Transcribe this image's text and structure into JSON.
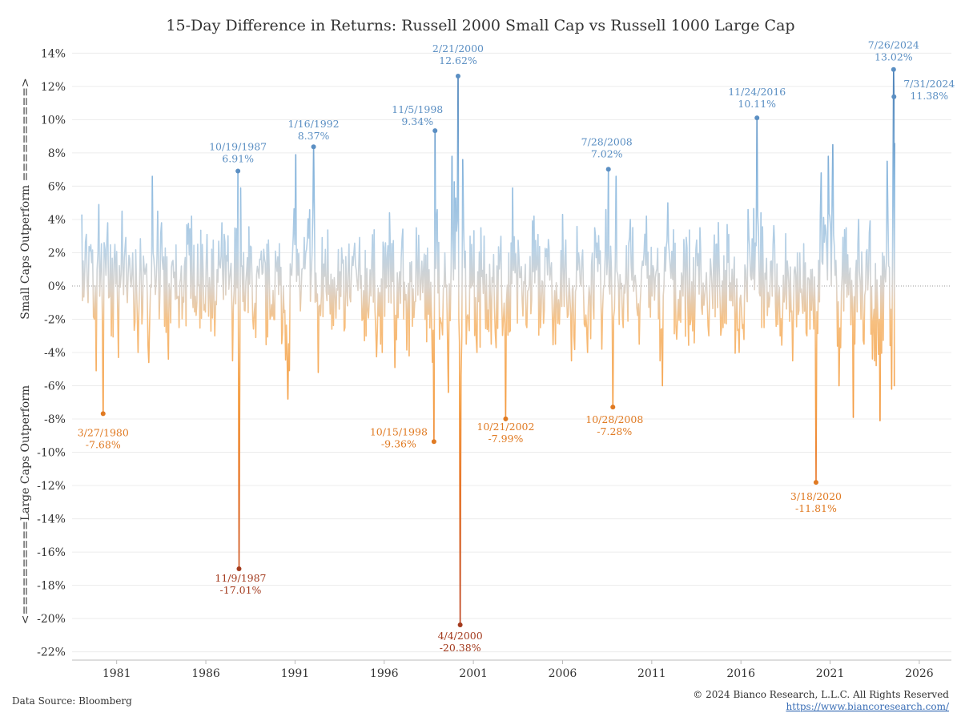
{
  "chart_data": {
    "type": "line",
    "title": "15-Day Difference in Returns: Russell 2000 Small Cap vs Russell 1000 Large Cap",
    "ylabel_top": "Small Caps Outperform ==========>",
    "ylabel_bottom": "<==========Large Caps Outperform",
    "ylim": [
      -22.5,
      14.5
    ],
    "xlim": [
      1978.5,
      2027.8
    ],
    "y_ticks": [
      -22,
      -20,
      -18,
      -16,
      -14,
      -12,
      -10,
      -8,
      -6,
      -4,
      -2,
      0,
      2,
      4,
      6,
      8,
      10,
      12,
      14
    ],
    "y_tick_labels": [
      "-22%",
      "-20%",
      "-18%",
      "-16%",
      "-14%",
      "-12%",
      "-10%",
      "-8%",
      "-6%",
      "-4%",
      "-2%",
      "0%",
      "2%",
      "4%",
      "6%",
      "8%",
      "10%",
      "12%",
      "14%"
    ],
    "x_ticks": [
      1981,
      1986,
      1991,
      1996,
      2001,
      2006,
      2011,
      2016,
      2021,
      2026
    ],
    "x_tick_labels": [
      "1981",
      "1986",
      "1991",
      "1996",
      "2001",
      "2006",
      "2011",
      "2016",
      "2021",
      "2026"
    ],
    "grid": true,
    "colors": {
      "positive_high": "#3d75b0",
      "positive_low": "#9dc5e3",
      "neutral": "#d9cfc4",
      "negative_low": "#f7b266",
      "negative_high": "#ef8a2e",
      "extreme_negative": "#b5381c"
    },
    "series": [
      {
        "points": [
          [
            1979.05,
            4.3
          ],
          [
            1979.12,
            1.5
          ],
          [
            1979.2,
            0.5
          ],
          [
            1979.3,
            3.1
          ],
          [
            1979.4,
            -1.0
          ],
          [
            1979.5,
            2.1
          ],
          [
            1979.6,
            1.4
          ],
          [
            1979.75,
            -2.0
          ],
          [
            1979.85,
            -5.1
          ],
          [
            1980.0,
            4.9
          ],
          [
            1980.1,
            1.0
          ],
          [
            1980.24,
            -7.68
          ],
          [
            1980.35,
            2.2
          ],
          [
            1980.5,
            3.8
          ],
          [
            1980.7,
            -3.0
          ],
          [
            1980.9,
            2.5
          ],
          [
            1981.1,
            -4.3
          ],
          [
            1981.3,
            4.5
          ],
          [
            1981.6,
            -1.0
          ],
          [
            1981.9,
            2.0
          ],
          [
            1982.2,
            -4.0
          ],
          [
            1982.5,
            1.8
          ],
          [
            1982.8,
            -4.6
          ],
          [
            1983.0,
            6.6
          ],
          [
            1983.3,
            4.5
          ],
          [
            1983.6,
            1.0
          ],
          [
            1983.9,
            -4.4
          ],
          [
            1984.2,
            0.5
          ],
          [
            1984.5,
            -2.5
          ],
          [
            1984.8,
            1.2
          ],
          [
            1985.2,
            4.2
          ],
          [
            1985.5,
            -1.0
          ],
          [
            1985.8,
            2.5
          ],
          [
            1986.2,
            0.5
          ],
          [
            1986.5,
            -3.0
          ],
          [
            1986.9,
            3.8
          ],
          [
            1987.2,
            1.5
          ],
          [
            1987.5,
            -4.5
          ],
          [
            1987.8,
            6.91
          ],
          [
            1987.86,
            -17.01
          ],
          [
            1987.95,
            5.9
          ],
          [
            1988.2,
            -1.5
          ],
          [
            1988.5,
            2.4
          ],
          [
            1988.8,
            -3.1
          ],
          [
            1989.2,
            0.8
          ],
          [
            1989.6,
            -2.0
          ],
          [
            1989.9,
            2.1
          ],
          [
            1990.3,
            -2.8
          ],
          [
            1990.6,
            -6.8
          ],
          [
            1990.9,
            3.0
          ],
          [
            1991.04,
            7.9
          ],
          [
            1991.3,
            -1.5
          ],
          [
            1991.6,
            2.0
          ],
          [
            1992.04,
            8.37
          ],
          [
            1992.3,
            -5.2
          ],
          [
            1992.7,
            2.2
          ],
          [
            1993.2,
            0.5
          ],
          [
            1993.8,
            -2.5
          ],
          [
            1994.3,
            2.0
          ],
          [
            1994.8,
            -2.0
          ],
          [
            1995.3,
            1.5
          ],
          [
            1995.8,
            -3.5
          ],
          [
            1996.3,
            4.4
          ],
          [
            1996.6,
            -4.9
          ],
          [
            1997.0,
            2.8
          ],
          [
            1997.4,
            -4.2
          ],
          [
            1997.8,
            3.5
          ],
          [
            1998.2,
            1.0
          ],
          [
            1998.79,
            -9.36
          ],
          [
            1998.85,
            9.34
          ],
          [
            1999.1,
            -3.2
          ],
          [
            1999.4,
            2.0
          ],
          [
            1999.6,
            -6.4
          ],
          [
            1999.8,
            7.8
          ],
          [
            2000.14,
            12.62
          ],
          [
            2000.26,
            -20.38
          ],
          [
            2000.4,
            7.6
          ],
          [
            2000.6,
            -3.5
          ],
          [
            2000.9,
            2.5
          ],
          [
            2001.2,
            -4.0
          ],
          [
            2001.6,
            3.0
          ],
          [
            2002.0,
            -3.5
          ],
          [
            2002.5,
            1.8
          ],
          [
            2002.81,
            -7.99
          ],
          [
            2003.2,
            5.9
          ],
          [
            2003.6,
            0.5
          ],
          [
            2004.0,
            -2.5
          ],
          [
            2004.4,
            4.2
          ],
          [
            2004.8,
            -1.5
          ],
          [
            2005.2,
            2.8
          ],
          [
            2005.6,
            -3.5
          ],
          [
            2006.0,
            4.3
          ],
          [
            2006.5,
            -4.5
          ],
          [
            2006.9,
            2.0
          ],
          [
            2007.4,
            -4.0
          ],
          [
            2007.8,
            3.5
          ],
          [
            2008.2,
            -3.8
          ],
          [
            2008.57,
            7.02
          ],
          [
            2008.82,
            -7.28
          ],
          [
            2009.0,
            6.6
          ],
          [
            2009.4,
            -2.5
          ],
          [
            2009.8,
            4.0
          ],
          [
            2010.3,
            -3.5
          ],
          [
            2010.7,
            4.2
          ],
          [
            2011.2,
            0.5
          ],
          [
            2011.6,
            -6.0
          ],
          [
            2011.9,
            5.0
          ],
          [
            2012.4,
            -3.2
          ],
          [
            2012.8,
            2.8
          ],
          [
            2013.2,
            -2.0
          ],
          [
            2013.7,
            3.5
          ],
          [
            2014.2,
            -3.0
          ],
          [
            2014.6,
            2.5
          ],
          [
            2015.0,
            -2.5
          ],
          [
            2015.5,
            1.0
          ],
          [
            2015.9,
            -4.0
          ],
          [
            2016.4,
            4.6
          ],
          [
            2016.9,
            10.11
          ],
          [
            2017.3,
            -2.5
          ],
          [
            2017.8,
            2.5
          ],
          [
            2018.2,
            -3.0
          ],
          [
            2018.6,
            1.5
          ],
          [
            2018.9,
            -4.5
          ],
          [
            2019.3,
            2.0
          ],
          [
            2019.7,
            -3.0
          ],
          [
            2020.0,
            1.0
          ],
          [
            2020.21,
            -11.81
          ],
          [
            2020.5,
            6.8
          ],
          [
            2020.9,
            7.8
          ],
          [
            2021.15,
            8.5
          ],
          [
            2021.5,
            -6.0
          ],
          [
            2021.9,
            3.5
          ],
          [
            2022.3,
            -7.9
          ],
          [
            2022.6,
            4.0
          ],
          [
            2022.9,
            -3.5
          ],
          [
            2023.2,
            3.2
          ],
          [
            2023.5,
            -4.5
          ],
          [
            2023.8,
            -8.1
          ],
          [
            2024.2,
            7.5
          ],
          [
            2024.45,
            -6.2
          ],
          [
            2024.56,
            13.02
          ],
          [
            2024.58,
            11.38
          ],
          [
            2024.6,
            -6.0
          ],
          [
            2024.62,
            8.6
          ]
        ]
      }
    ],
    "annotations": [
      {
        "date": "3/27/1980",
        "value_label": "-7.68%",
        "x": 1980.24,
        "y": -7.68,
        "color": "#e07a22"
      },
      {
        "date": "10/19/1987",
        "value_label": "6.91%",
        "x": 1987.8,
        "y": 6.91,
        "color": "#5b8fc3"
      },
      {
        "date": "11/9/1987",
        "value_label": "-17.01%",
        "x": 1987.86,
        "y": -17.01,
        "color": "#a33a1d"
      },
      {
        "date": "1/16/1992",
        "value_label": "8.37%",
        "x": 1992.04,
        "y": 8.37,
        "color": "#5b8fc3"
      },
      {
        "date": "11/5/1998",
        "value_label": "9.34%",
        "x": 1998.85,
        "y": 9.34,
        "color": "#5b8fc3"
      },
      {
        "date": "10/15/1998",
        "value_label": "-9.36%",
        "x": 1998.79,
        "y": -9.36,
        "color": "#e07a22"
      },
      {
        "date": "2/21/2000",
        "value_label": "12.62%",
        "x": 2000.14,
        "y": 12.62,
        "color": "#5b8fc3"
      },
      {
        "date": "4/4/2000",
        "value_label": "-20.38%",
        "x": 2000.26,
        "y": -20.38,
        "color": "#a33a1d"
      },
      {
        "date": "10/21/2002",
        "value_label": "-7.99%",
        "x": 2002.81,
        "y": -7.99,
        "color": "#e07a22"
      },
      {
        "date": "7/28/2008",
        "value_label": "7.02%",
        "x": 2008.57,
        "y": 7.02,
        "color": "#5b8fc3"
      },
      {
        "date": "10/28/2008",
        "value_label": "-7.28%",
        "x": 2008.82,
        "y": -7.28,
        "color": "#e07a22"
      },
      {
        "date": "11/24/2016",
        "value_label": "10.11%",
        "x": 2016.9,
        "y": 10.11,
        "color": "#5b8fc3"
      },
      {
        "date": "3/18/2020",
        "value_label": "-11.81%",
        "x": 2020.21,
        "y": -11.81,
        "color": "#e07a22"
      },
      {
        "date": "7/26/2024",
        "value_label": "13.02%",
        "x": 2024.56,
        "y": 13.02,
        "color": "#5b8fc3"
      },
      {
        "date": "7/31/2024",
        "value_label": "11.38%",
        "x": 2024.58,
        "y": 11.38,
        "color": "#5b8fc3"
      }
    ]
  },
  "footer": {
    "source": "Data Source: Bloomberg",
    "copyright": "© 2024 Bianco Research, L.L.C. All Rights Reserved",
    "link": "https://www.biancoresearch.com/"
  }
}
